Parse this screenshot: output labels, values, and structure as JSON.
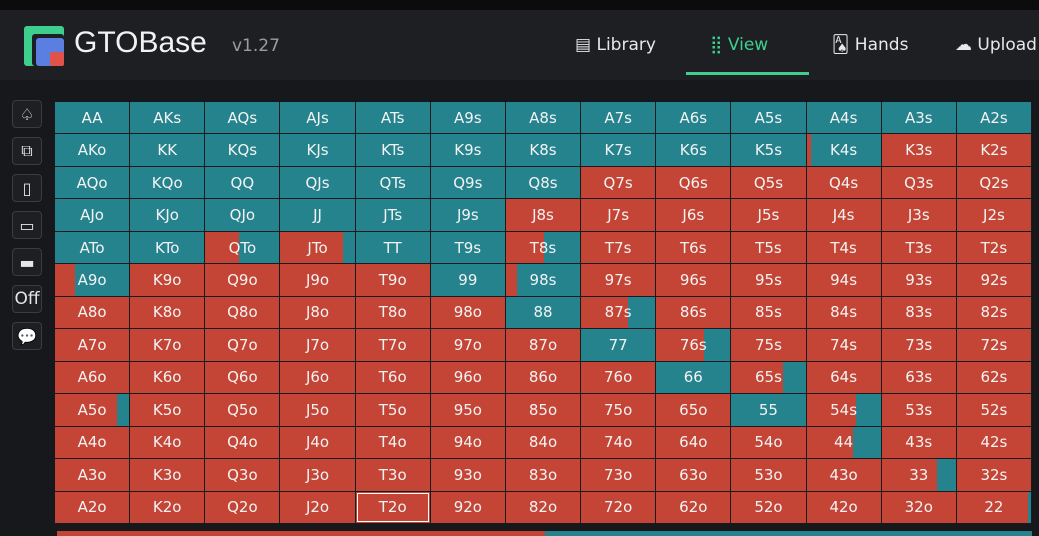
{
  "header": {
    "brand": "GTOBase",
    "version": "v1.27",
    "nav": [
      "Library",
      "View",
      "Hands",
      "Upload"
    ],
    "active_nav": 1
  },
  "sidebar": {
    "off_label": "Off"
  },
  "grid": {
    "selected": [
      12,
      4
    ],
    "labels": [
      [
        "AA",
        "AKs",
        "AQs",
        "AJs",
        "ATs",
        "A9s",
        "A8s",
        "A7s",
        "A6s",
        "A5s",
        "A4s",
        "A3s",
        "A2s"
      ],
      [
        "AKo",
        "KK",
        "KQs",
        "KJs",
        "KTs",
        "K9s",
        "K8s",
        "K7s",
        "K6s",
        "K5s",
        "K4s",
        "K3s",
        "K2s"
      ],
      [
        "AQo",
        "KQo",
        "QQ",
        "QJs",
        "QTs",
        "Q9s",
        "Q8s",
        "Q7s",
        "Q6s",
        "Q5s",
        "Q4s",
        "Q3s",
        "Q2s"
      ],
      [
        "AJo",
        "KJo",
        "QJo",
        "JJ",
        "JTs",
        "J9s",
        "J8s",
        "J7s",
        "J6s",
        "J5s",
        "J4s",
        "J3s",
        "J2s"
      ],
      [
        "ATo",
        "KTo",
        "QTo",
        "JTo",
        "TT",
        "T9s",
        "T8s",
        "T7s",
        "T6s",
        "T5s",
        "T4s",
        "T3s",
        "T2s"
      ],
      [
        "A9o",
        "K9o",
        "Q9o",
        "J9o",
        "T9o",
        "99",
        "98s",
        "97s",
        "96s",
        "95s",
        "94s",
        "93s",
        "92s"
      ],
      [
        "A8o",
        "K8o",
        "Q8o",
        "J8o",
        "T8o",
        "98o",
        "88",
        "87s",
        "86s",
        "85s",
        "84s",
        "83s",
        "82s"
      ],
      [
        "A7o",
        "K7o",
        "Q7o",
        "J7o",
        "T7o",
        "97o",
        "87o",
        "77",
        "76s",
        "75s",
        "74s",
        "73s",
        "72s"
      ],
      [
        "A6o",
        "K6o",
        "Q6o",
        "J6o",
        "T6o",
        "96o",
        "86o",
        "76o",
        "66",
        "65s",
        "64s",
        "63s",
        "62s"
      ],
      [
        "A5o",
        "K5o",
        "Q5o",
        "J5o",
        "T5o",
        "95o",
        "85o",
        "75o",
        "65o",
        "55",
        "54s",
        "53s",
        "52s"
      ],
      [
        "A4o",
        "K4o",
        "Q4o",
        "J4o",
        "T4o",
        "94o",
        "84o",
        "74o",
        "64o",
        "54o",
        "44",
        "43s",
        "42s"
      ],
      [
        "A3o",
        "K3o",
        "Q3o",
        "J3o",
        "T3o",
        "93o",
        "83o",
        "73o",
        "63o",
        "53o",
        "43o",
        "33",
        "32s"
      ],
      [
        "A2o",
        "K2o",
        "Q2o",
        "J2o",
        "T2o",
        "92o",
        "82o",
        "72o",
        "62o",
        "52o",
        "42o",
        "32o",
        "22"
      ]
    ],
    "teal_fraction": [
      [
        1,
        1,
        1,
        1,
        1,
        1,
        1,
        1,
        1,
        1,
        1,
        1,
        1
      ],
      [
        1,
        1,
        1,
        1,
        1,
        1,
        1,
        1,
        1,
        1,
        0.94,
        0,
        0
      ],
      [
        1,
        1,
        1,
        1,
        1,
        1,
        1,
        0,
        0,
        0,
        0,
        0,
        0
      ],
      [
        1,
        1,
        1,
        1,
        1,
        1,
        0,
        0,
        0,
        0,
        0,
        0,
        0
      ],
      [
        1,
        1,
        0.55,
        0.15,
        1,
        1,
        0.48,
        0,
        0,
        0,
        0,
        0,
        0
      ],
      [
        0.73,
        0,
        0,
        0,
        0,
        1,
        0.85,
        0,
        0,
        0,
        0,
        0,
        0
      ],
      [
        0,
        0,
        0,
        0,
        0,
        0,
        1,
        0.37,
        0,
        0,
        0,
        0,
        0
      ],
      [
        0,
        0,
        0,
        0,
        0,
        0,
        0,
        1,
        0.35,
        0,
        0,
        0,
        0
      ],
      [
        0,
        0,
        0,
        0,
        0,
        0,
        0,
        0,
        1,
        0.3,
        0,
        0,
        0
      ],
      [
        0.16,
        0,
        0,
        0,
        0,
        0,
        0,
        0,
        0,
        1,
        0.33,
        0,
        0
      ],
      [
        0,
        0,
        0,
        0,
        0,
        0,
        0,
        0,
        0,
        0,
        0.37,
        0,
        0
      ],
      [
        0,
        0,
        0,
        0,
        0,
        0,
        0,
        0,
        0,
        0,
        0,
        0.25,
        0
      ],
      [
        0,
        0,
        0,
        0,
        0,
        0,
        0,
        0,
        0,
        0,
        0,
        0,
        0.04
      ]
    ]
  },
  "summary": {
    "teal_fraction": 0.5
  }
}
